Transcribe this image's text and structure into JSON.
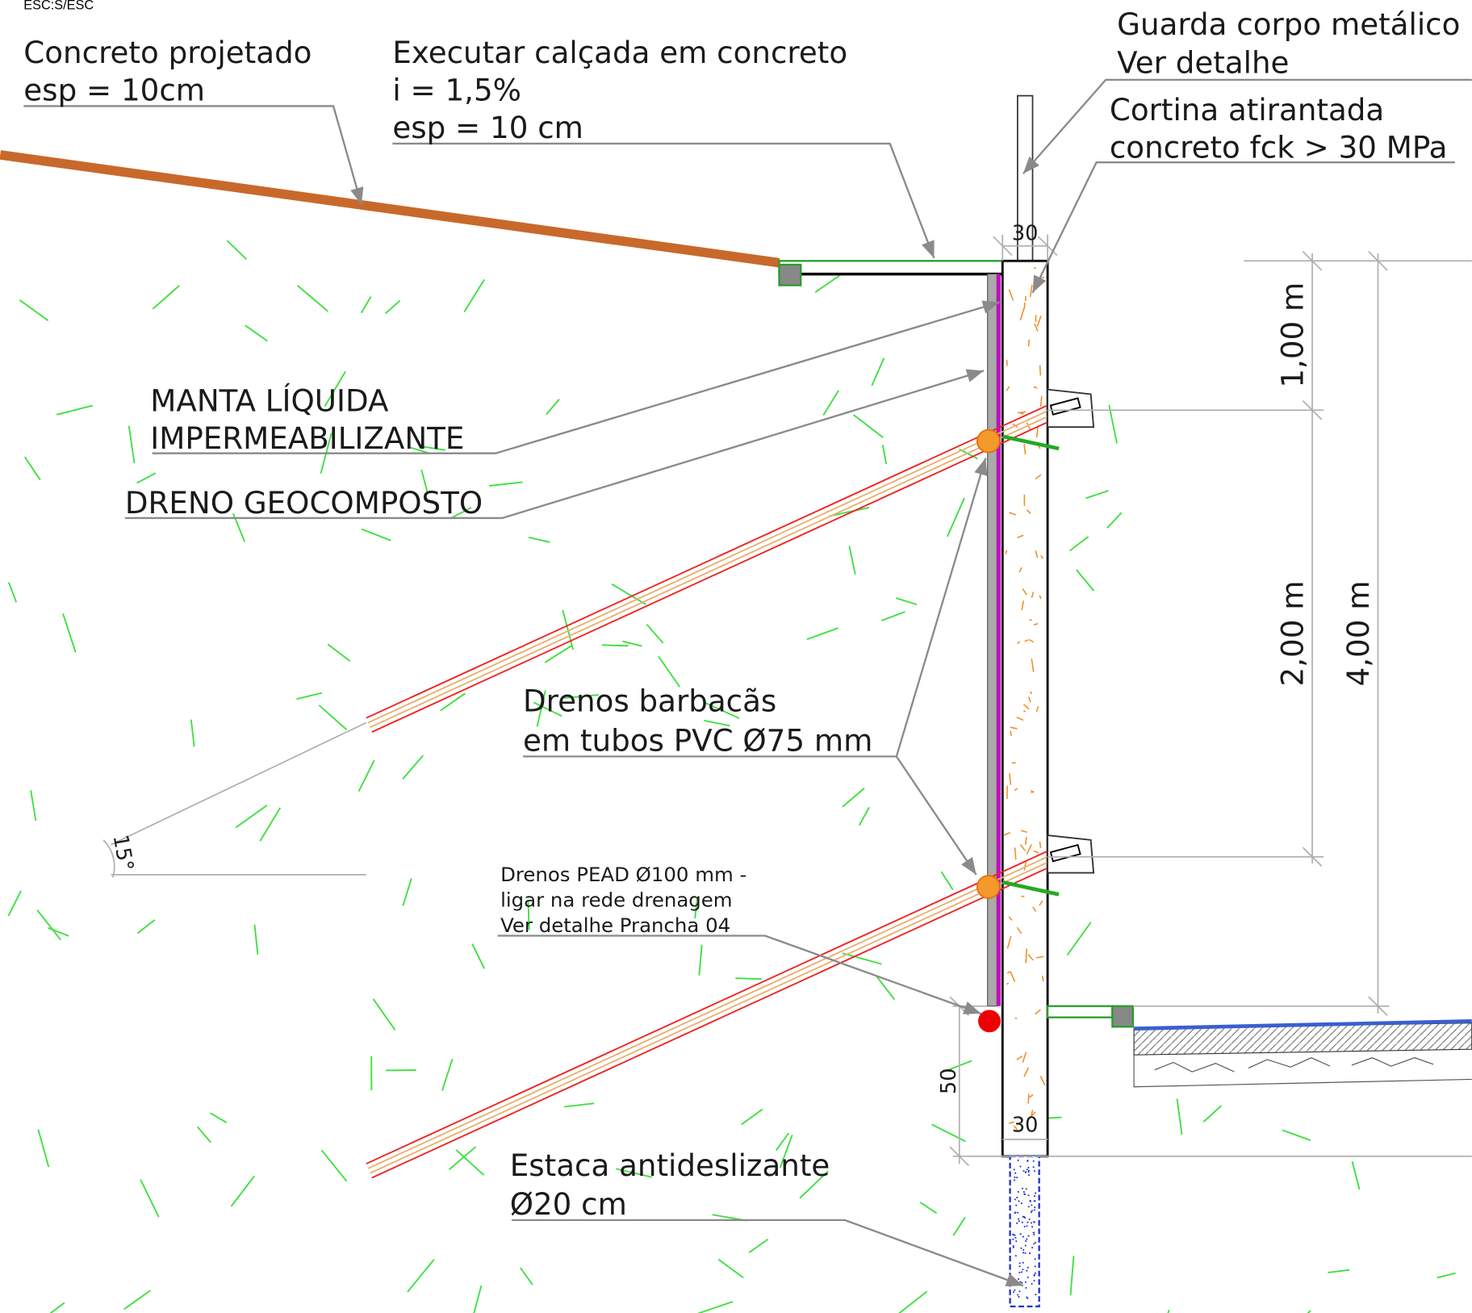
{
  "scale": "ESC:S/ESC",
  "annotations": [
    {
      "lines": [
        "Concreto projetado",
        "esp = 10cm"
      ]
    },
    {
      "lines": [
        "Executar calçada em concreto",
        "i = 1,5%",
        "esp = 10 cm"
      ]
    },
    {
      "lines": [
        "Guarda corpo metálico",
        "Ver detalhe"
      ]
    },
    {
      "lines": [
        "Cortina atirantada",
        "concreto fck > 30 MPa"
      ]
    },
    {
      "lines": [
        "MANTA LÍQUIDA",
        "IMPERMEABILIZANTE"
      ]
    },
    {
      "lines": [
        "DRENO GEOCOMPOSTO"
      ]
    },
    {
      "lines": [
        "Drenos barbacãs",
        "em tubos PVC Ø75 mm"
      ]
    },
    {
      "lines": [
        "Drenos PEAD Ø100 mm -",
        "ligar na rede drenagem",
        "Ver detalhe Prancha 04"
      ]
    },
    {
      "lines": [
        "Estaca antideslizante",
        "Ø20 cm"
      ]
    }
  ],
  "dimensions": [
    "30",
    "30",
    "1,00 m",
    "2,00 m",
    "4,00 m",
    "50",
    "15°"
  ]
}
